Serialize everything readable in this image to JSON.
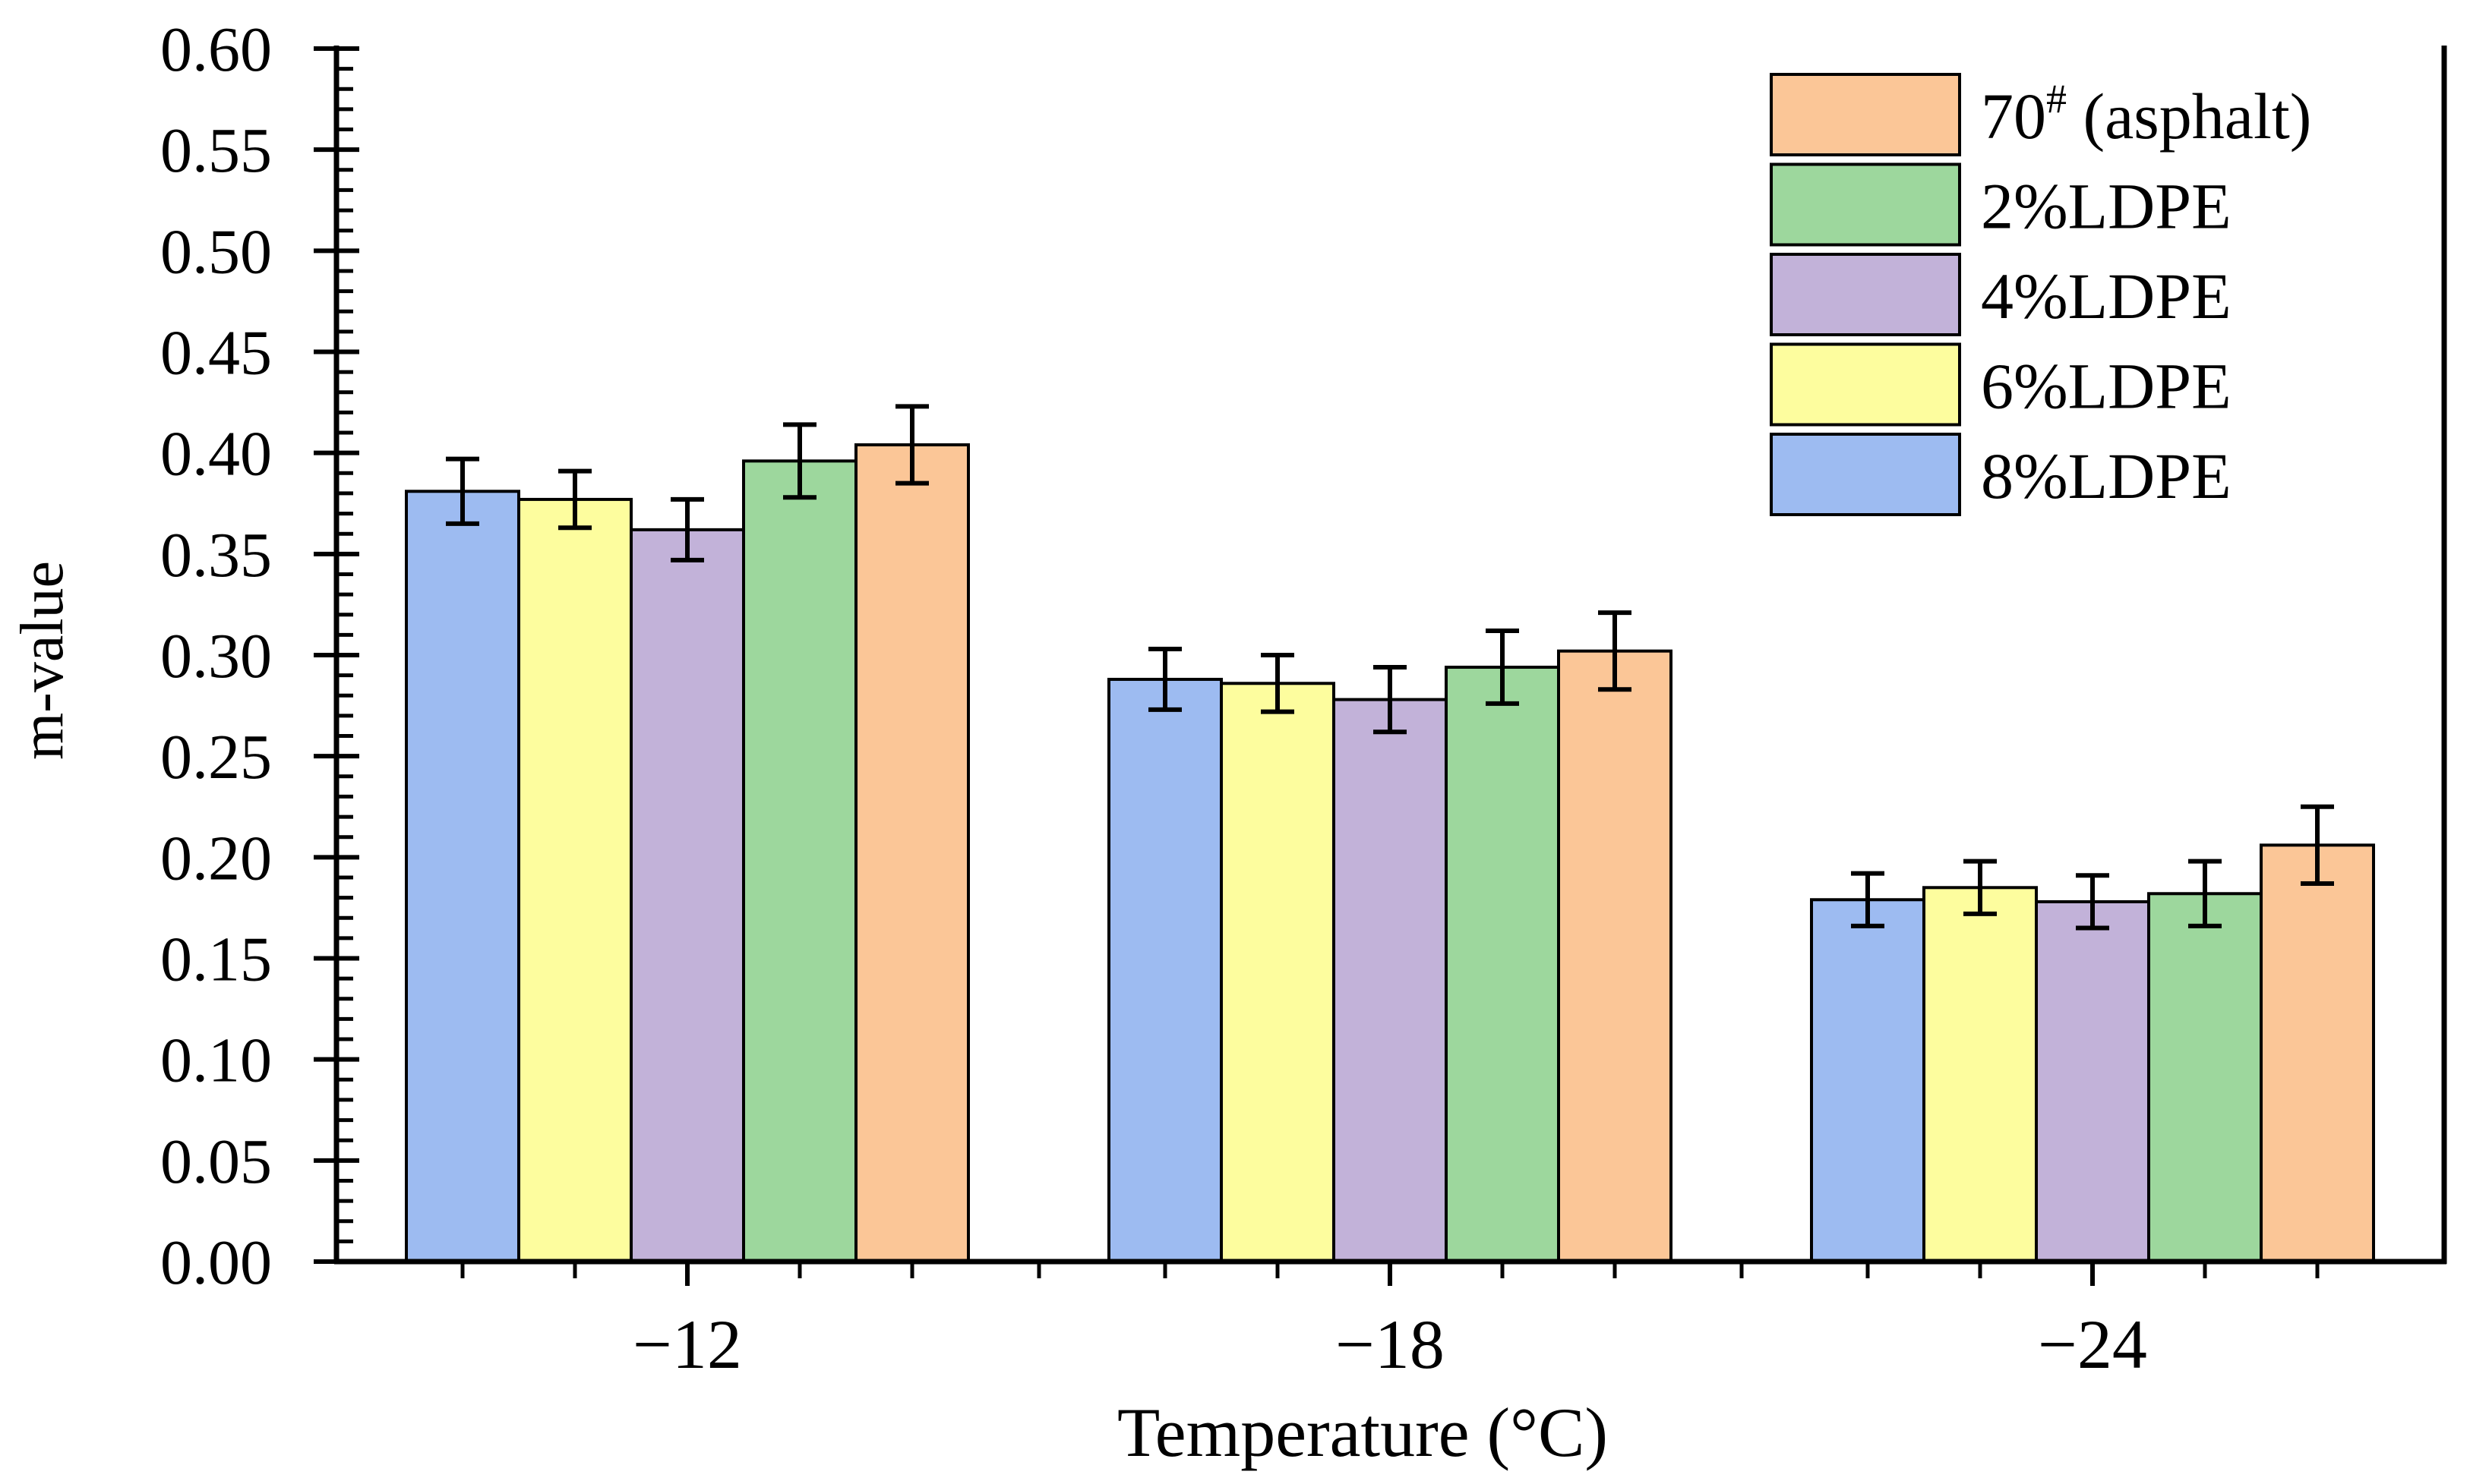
{
  "chart_data": {
    "type": "bar",
    "xlabel": "Temperature (°C)",
    "ylabel": "m-value",
    "ylim": [
      0,
      0.6
    ],
    "y_major_step": 0.05,
    "y_minor_step": 0.01,
    "y_tick_labels": [
      "0.00",
      "0.05",
      "0.10",
      "0.15",
      "0.20",
      "0.25",
      "0.30",
      "0.35",
      "0.40",
      "0.45",
      "0.50",
      "0.55",
      "0.60"
    ],
    "categories": [
      "−12",
      "−18",
      "−24"
    ],
    "grid": false,
    "legend_position": "top-right",
    "series": [
      {
        "name": "8%LDPE",
        "color": "#9DBBF1",
        "values": [
          0.381,
          0.288,
          0.179
        ],
        "errors": [
          0.016,
          0.015,
          0.013
        ]
      },
      {
        "name": "6%LDPE",
        "color": "#FDFD9E",
        "values": [
          0.377,
          0.286,
          0.185
        ],
        "errors": [
          0.014,
          0.014,
          0.013
        ]
      },
      {
        "name": "4%LDPE",
        "color": "#C2B2D9",
        "values": [
          0.362,
          0.278,
          0.178
        ],
        "errors": [
          0.015,
          0.016,
          0.013
        ]
      },
      {
        "name": "2%LDPE",
        "color": "#9DD79D",
        "values": [
          0.396,
          0.294,
          0.182
        ],
        "errors": [
          0.018,
          0.018,
          0.016
        ]
      },
      {
        "name": "70",
        "name_sup": "#",
        "name_suffix": " (asphalt)",
        "color": "#FBC697",
        "values": [
          0.404,
          0.302,
          0.206
        ],
        "errors": [
          0.019,
          0.019,
          0.019
        ]
      }
    ],
    "legend_order": [
      4,
      3,
      2,
      1,
      0
    ]
  }
}
